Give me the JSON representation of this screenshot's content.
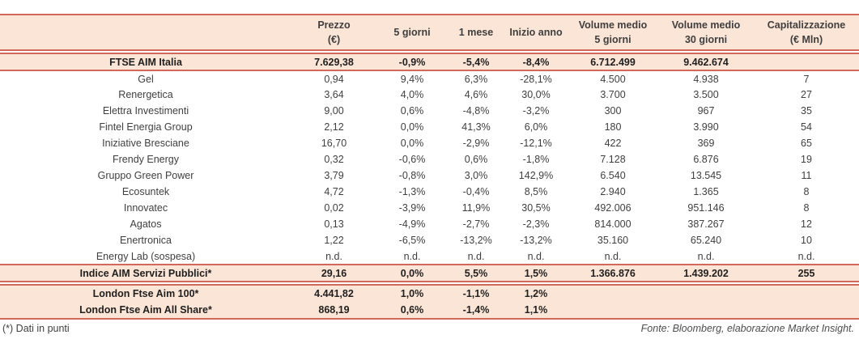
{
  "header": {
    "columns": [
      {
        "line1": "Prezzo",
        "line2": "(€)"
      },
      {
        "line1": "5 giorni",
        "line2": ""
      },
      {
        "line1": "1 mese",
        "line2": ""
      },
      {
        "line1": "Inizio anno",
        "line2": ""
      },
      {
        "line1": "Volume medio",
        "line2": "5 giorni"
      },
      {
        "line1": "Volume medio",
        "line2": "30 giorni"
      },
      {
        "line1": "Capitalizzazione",
        "line2": "(€ Mln)"
      }
    ]
  },
  "summary_row": {
    "name": "FTSE AIM Italia",
    "cells": [
      "7.629,38",
      "-0,9%",
      "-5,4%",
      "-8,4%",
      "6.712.499",
      "9.462.674",
      ""
    ]
  },
  "data_rows": [
    {
      "name": "Gel",
      "cells": [
        "0,94",
        "9,4%",
        "6,3%",
        "-28,1%",
        "4.500",
        "4.938",
        "7"
      ]
    },
    {
      "name": "Renergetica",
      "cells": [
        "3,64",
        "4,0%",
        "4,6%",
        "30,0%",
        "3.700",
        "3.500",
        "27"
      ]
    },
    {
      "name": "Elettra Investimenti",
      "cells": [
        "9,00",
        "0,6%",
        "-4,8%",
        "-3,2%",
        "300",
        "967",
        "35"
      ]
    },
    {
      "name": "Fintel Energia Group",
      "cells": [
        "2,12",
        "0,0%",
        "41,3%",
        "6,0%",
        "180",
        "3.990",
        "54"
      ]
    },
    {
      "name": "Iniziative Bresciane",
      "cells": [
        "16,70",
        "0,0%",
        "-2,9%",
        "-12,1%",
        "422",
        "369",
        "65"
      ]
    },
    {
      "name": "Frendy Energy",
      "cells": [
        "0,32",
        "-0,6%",
        "0,6%",
        "-1,8%",
        "7.128",
        "6.876",
        "19"
      ]
    },
    {
      "name": "Gruppo Green Power",
      "cells": [
        "3,79",
        "-0,8%",
        "3,0%",
        "142,9%",
        "6.540",
        "13.545",
        "11"
      ]
    },
    {
      "name": "Ecosuntek",
      "cells": [
        "4,72",
        "-1,3%",
        "-0,4%",
        "8,5%",
        "2.940",
        "1.365",
        "8"
      ]
    },
    {
      "name": "Innovatec",
      "cells": [
        "0,02",
        "-3,9%",
        "11,9%",
        "30,5%",
        "492.006",
        "951.146",
        "8"
      ]
    },
    {
      "name": "Agatos",
      "cells": [
        "0,13",
        "-4,9%",
        "-2,7%",
        "-2,3%",
        "814.000",
        "387.267",
        "12"
      ]
    },
    {
      "name": "Enertronica",
      "cells": [
        "1,22",
        "-6,5%",
        "-13,2%",
        "-13,2%",
        "35.160",
        "65.240",
        "10"
      ]
    },
    {
      "name": "Energy Lab (sospesa)",
      "cells": [
        "n.d.",
        "n.d.",
        "n.d.",
        "n.d.",
        "n.d.",
        "n.d.",
        "n.d."
      ]
    }
  ],
  "indice_row": {
    "name": "Indice AIM Servizi Pubblici*",
    "cells": [
      "29,16",
      "0,0%",
      "5,5%",
      "1,5%",
      "1.366.876",
      "1.439.202",
      "255"
    ]
  },
  "london_rows": [
    {
      "name": "London Ftse Aim 100*",
      "cells": [
        "4.441,82",
        "1,0%",
        "-1,1%",
        "1,2%",
        "",
        "",
        ""
      ]
    },
    {
      "name": "London Ftse Aim All Share*",
      "cells": [
        "868,19",
        "0,6%",
        "-1,4%",
        "1,1%",
        "",
        "",
        ""
      ]
    }
  ],
  "footer": {
    "note": "(*) Dati in punti",
    "source": "Fonte: Bloomberg, elaborazione Market Insight."
  },
  "colors": {
    "accent_border": "#d2685a",
    "band_fill": "#fbe5d6",
    "body_text": "#3f3f3f",
    "bold_text": "#1f1f1f"
  }
}
